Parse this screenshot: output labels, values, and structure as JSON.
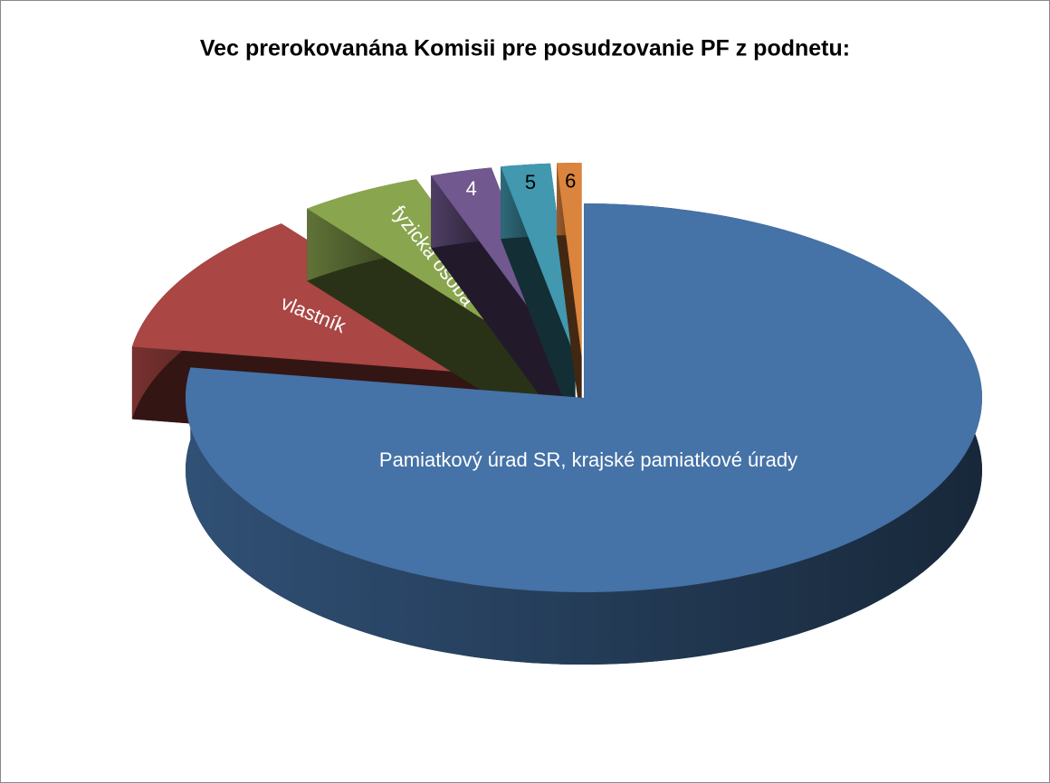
{
  "chart_data": {
    "type": "pie3d",
    "title": "Vec prerokovanána Komisii pre posudzovanie PF z podnetu:",
    "categories": [
      "Pamiatkový úrad SR, krajské pamiatkové úrady",
      "vlastník",
      "fyzická osoba",
      "4",
      "5",
      "6"
    ],
    "values": [
      77.5,
      12,
      5,
      2.5,
      2,
      1
    ],
    "colors": [
      "#4572a7",
      "#aa4643",
      "#89a54e",
      "#71588f",
      "#4198af",
      "#db843d"
    ]
  }
}
